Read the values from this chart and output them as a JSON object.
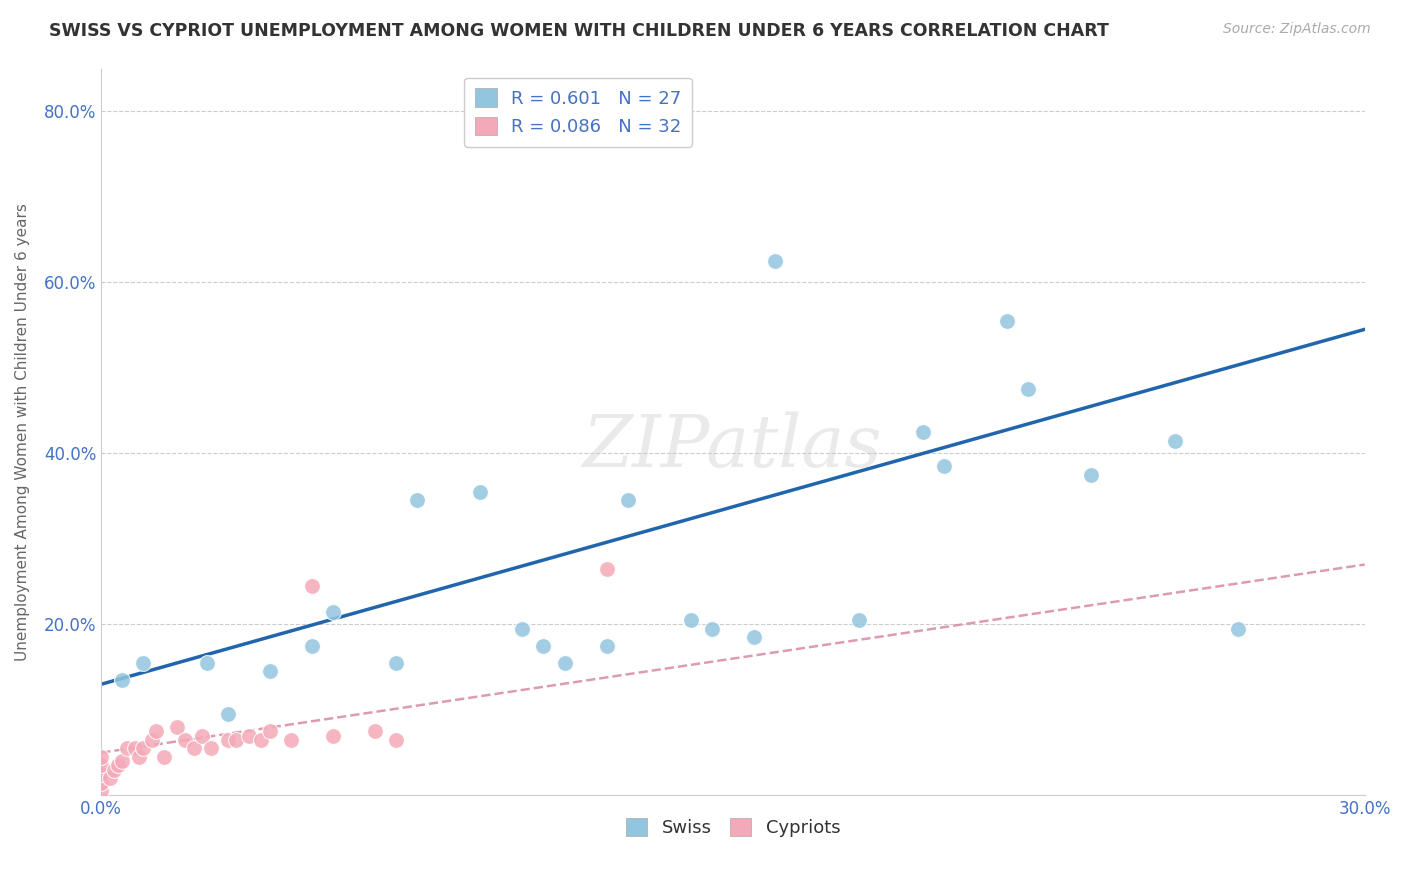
{
  "title": "SWISS VS CYPRIOT UNEMPLOYMENT AMONG WOMEN WITH CHILDREN UNDER 6 YEARS CORRELATION CHART",
  "source": "Source: ZipAtlas.com",
  "ylabel": "Unemployment Among Women with Children Under 6 years",
  "xlabel": "",
  "xlim": [
    0.0,
    0.3
  ],
  "ylim": [
    0.0,
    0.85
  ],
  "xticks": [
    0.0,
    0.05,
    0.1,
    0.15,
    0.2,
    0.25,
    0.3
  ],
  "xtick_labels": [
    "0.0%",
    "",
    "",
    "",
    "",
    "",
    "30.0%"
  ],
  "yticks": [
    0.0,
    0.2,
    0.4,
    0.6,
    0.8
  ],
  "ytick_labels": [
    "",
    "20.0%",
    "40.0%",
    "60.0%",
    "80.0%"
  ],
  "swiss_R": 0.601,
  "swiss_N": 27,
  "cypriot_R": 0.086,
  "cypriot_N": 32,
  "swiss_color": "#92c5de",
  "cypriot_color": "#f4a9b8",
  "swiss_line_color": "#2166ac",
  "cypriot_line_color": "#d4849a",
  "swiss_scatter_x": [
    0.005,
    0.01,
    0.025,
    0.03,
    0.04,
    0.05,
    0.055,
    0.07,
    0.075,
    0.09,
    0.1,
    0.105,
    0.11,
    0.12,
    0.125,
    0.14,
    0.145,
    0.155,
    0.16,
    0.18,
    0.195,
    0.2,
    0.215,
    0.22,
    0.235,
    0.255,
    0.27
  ],
  "swiss_scatter_y": [
    0.135,
    0.155,
    0.155,
    0.095,
    0.145,
    0.175,
    0.215,
    0.155,
    0.345,
    0.355,
    0.195,
    0.175,
    0.155,
    0.175,
    0.345,
    0.205,
    0.195,
    0.185,
    0.625,
    0.205,
    0.425,
    0.385,
    0.555,
    0.475,
    0.375,
    0.415,
    0.195
  ],
  "cypriot_scatter_x": [
    0.0,
    0.0,
    0.0,
    0.0,
    0.0,
    0.002,
    0.003,
    0.004,
    0.005,
    0.006,
    0.008,
    0.009,
    0.01,
    0.012,
    0.013,
    0.015,
    0.018,
    0.02,
    0.022,
    0.024,
    0.026,
    0.03,
    0.032,
    0.035,
    0.038,
    0.04,
    0.045,
    0.05,
    0.055,
    0.065,
    0.07,
    0.12
  ],
  "cypriot_scatter_y": [
    0.005,
    0.015,
    0.025,
    0.035,
    0.045,
    0.02,
    0.03,
    0.035,
    0.04,
    0.055,
    0.055,
    0.045,
    0.055,
    0.065,
    0.075,
    0.045,
    0.08,
    0.065,
    0.055,
    0.07,
    0.055,
    0.065,
    0.065,
    0.07,
    0.065,
    0.075,
    0.065,
    0.245,
    0.07,
    0.075,
    0.065,
    0.265
  ],
  "swiss_line_x0": 0.0,
  "swiss_line_y0": 0.13,
  "swiss_line_x1": 0.3,
  "swiss_line_y1": 0.545,
  "cypriot_line_x0": 0.0,
  "cypriot_line_y0": 0.05,
  "cypriot_line_x1": 0.3,
  "cypriot_line_y1": 0.27,
  "background_color": "#ffffff",
  "grid_color": "#cccccc"
}
